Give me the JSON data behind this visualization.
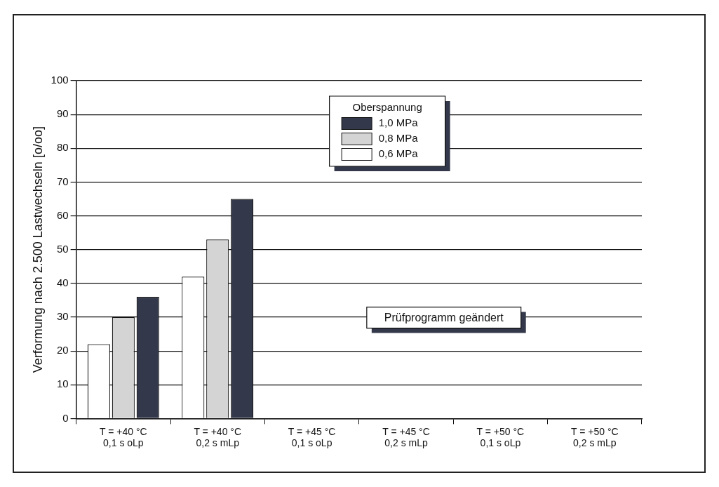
{
  "chart_data": {
    "type": "bar",
    "ylabel": "Verformung nach 2.500 Lastwechseln [o/oo]",
    "legend_title": "Oberspannung",
    "categories": [
      "T = +40 °C\n0,1 s oLp",
      "T = +40 °C\n0,2 s mLp",
      "T = +45 °C\n0,1 s oLp",
      "T = +45 °C\n0,2 s mLp",
      "T = +50 °C\n0,1 s oLp",
      "T = +50 °C\n0,2 s mLp"
    ],
    "series": [
      {
        "name": "0,6 MPa",
        "color": "#ffffff",
        "values": [
          22,
          42,
          null,
          null,
          null,
          null
        ]
      },
      {
        "name": "0,8 MPa",
        "color": "#d4d4d4",
        "values": [
          30,
          53,
          null,
          null,
          null,
          null
        ]
      },
      {
        "name": "1,0 MPa",
        "color": "#33384a",
        "values": [
          36,
          65,
          null,
          null,
          null,
          null
        ]
      }
    ],
    "ylim": [
      0,
      100
    ],
    "yticks": [
      0,
      10,
      20,
      30,
      40,
      50,
      60,
      70,
      80,
      90,
      100
    ],
    "grid": "y",
    "legend": "top",
    "annotations": [
      "Prüfprogramm geändert"
    ]
  }
}
